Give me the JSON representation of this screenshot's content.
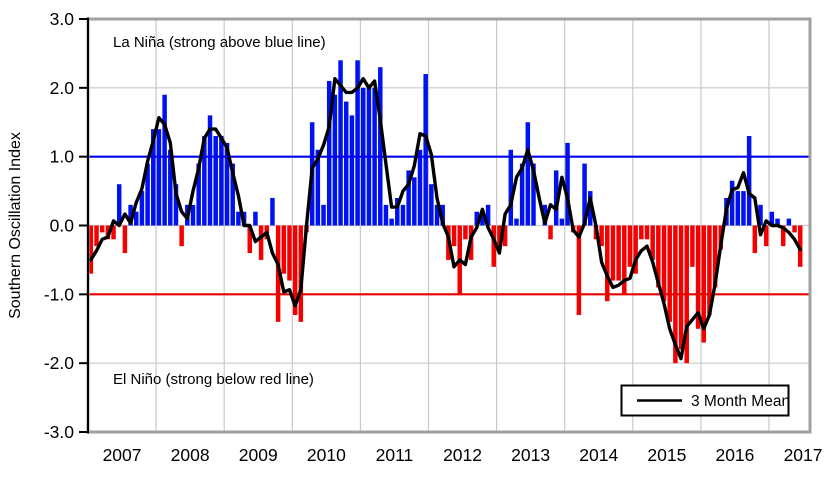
{
  "y_axis": {
    "title": "Southern Oscillation Index",
    "tick_labels": [
      "3.0",
      "2.0",
      "1.0",
      "0.0",
      "-1.0",
      "-2.0",
      "-3.0"
    ],
    "min": -3.0,
    "max": 3.0
  },
  "x_axis": {
    "year_labels": [
      "2007",
      "2008",
      "2009",
      "2010",
      "2011",
      "2012",
      "2013",
      "2014",
      "2015",
      "2016",
      "2017"
    ]
  },
  "annotations": {
    "la_nina": "La Niña (strong above blue line)",
    "el_nino": "El Niño (strong below red line)"
  },
  "legend": {
    "label": "3 Month Mean"
  },
  "colors": {
    "positive_bar": "#0012f0",
    "negative_bar": "#f50000",
    "mean_line": "#000000",
    "la_nina_threshold_line": "#0000f0",
    "el_nino_threshold_line": "#e80000",
    "grid": "#c9c9c9",
    "frame": "#a0a0a0",
    "axis": "#000000",
    "text": "#000000",
    "legend_background": "#ffffff"
  },
  "chart_data": {
    "type": "bar",
    "title": "",
    "xlabel": "",
    "ylabel": "Southern Oscillation Index",
    "ylim": [
      -3.0,
      3.0
    ],
    "grid": true,
    "legend_position": "bottom-right",
    "bar_series_label": "Monthly Southern Oscillation Index",
    "line_series_label": "3 Month Mean (centered 3-month average of monthly values)",
    "reference_lines": [
      {
        "value": 1.0,
        "meaning": "La Niña strong above this blue line"
      },
      {
        "value": -1.0,
        "meaning": "El Niño strong below this red line"
      }
    ],
    "start_month": "2007-01",
    "monthly": [
      {
        "year": 2007,
        "values": [
          -0.7,
          -0.3,
          -0.1,
          -0.2,
          -0.2,
          0.6,
          -0.4,
          0.3,
          0.2,
          0.5,
          0.9,
          1.4
        ]
      },
      {
        "year": 2008,
        "values": [
          1.4,
          1.9,
          1.1,
          0.6,
          -0.3,
          0.3,
          0.3,
          0.9,
          1.3,
          1.6,
          1.3,
          1.3
        ]
      },
      {
        "year": 2009,
        "values": [
          1.2,
          0.9,
          0.2,
          0.2,
          -0.4,
          0.2,
          -0.5,
          -0.2,
          0.4,
          -1.4,
          -0.7,
          -0.8
        ]
      },
      {
        "year": 2010,
        "values": [
          -1.3,
          -1.4,
          -0.1,
          1.5,
          1.1,
          0.3,
          2.1,
          1.9,
          2.4,
          1.8,
          1.6,
          2.4
        ]
      },
      {
        "year": 2011,
        "values": [
          2.0,
          2.0,
          2.0,
          2.3,
          0.3,
          0.1,
          0.4,
          0.3,
          0.8,
          0.7,
          1.1,
          2.2
        ]
      },
      {
        "year": 2012,
        "values": [
          0.6,
          0.3,
          0.3,
          -0.5,
          -0.3,
          -1.0,
          -0.2,
          -0.5,
          0.2,
          0.2,
          0.3,
          -0.6
        ]
      },
      {
        "year": 2013,
        "values": [
          -0.3,
          -0.3,
          1.1,
          0.1,
          0.9,
          1.5,
          0.9,
          0.0,
          0.3,
          -0.2,
          0.8,
          0.1
        ]
      },
      {
        "year": 2014,
        "values": [
          1.2,
          -0.1,
          -1.3,
          0.9,
          0.5,
          -0.2,
          -0.3,
          -1.1,
          -0.8,
          -0.8,
          -1.0,
          -0.6
        ]
      },
      {
        "year": 2015,
        "values": [
          -0.7,
          -0.2,
          -0.2,
          -0.5,
          -0.9,
          -1.1,
          -1.4,
          -2.0,
          -1.8,
          -2.0,
          -0.6,
          -1.5
        ]
      },
      {
        "year": 2016,
        "values": [
          -1.7,
          -1.3,
          -0.9,
          -0.35,
          0.4,
          0.65,
          0.5,
          0.5,
          1.3,
          -0.4,
          0.3,
          -0.3
        ]
      },
      {
        "year": 2017,
        "values": [
          0.2,
          0.1,
          -0.3,
          0.1,
          -0.1,
          -0.6
        ]
      }
    ]
  }
}
